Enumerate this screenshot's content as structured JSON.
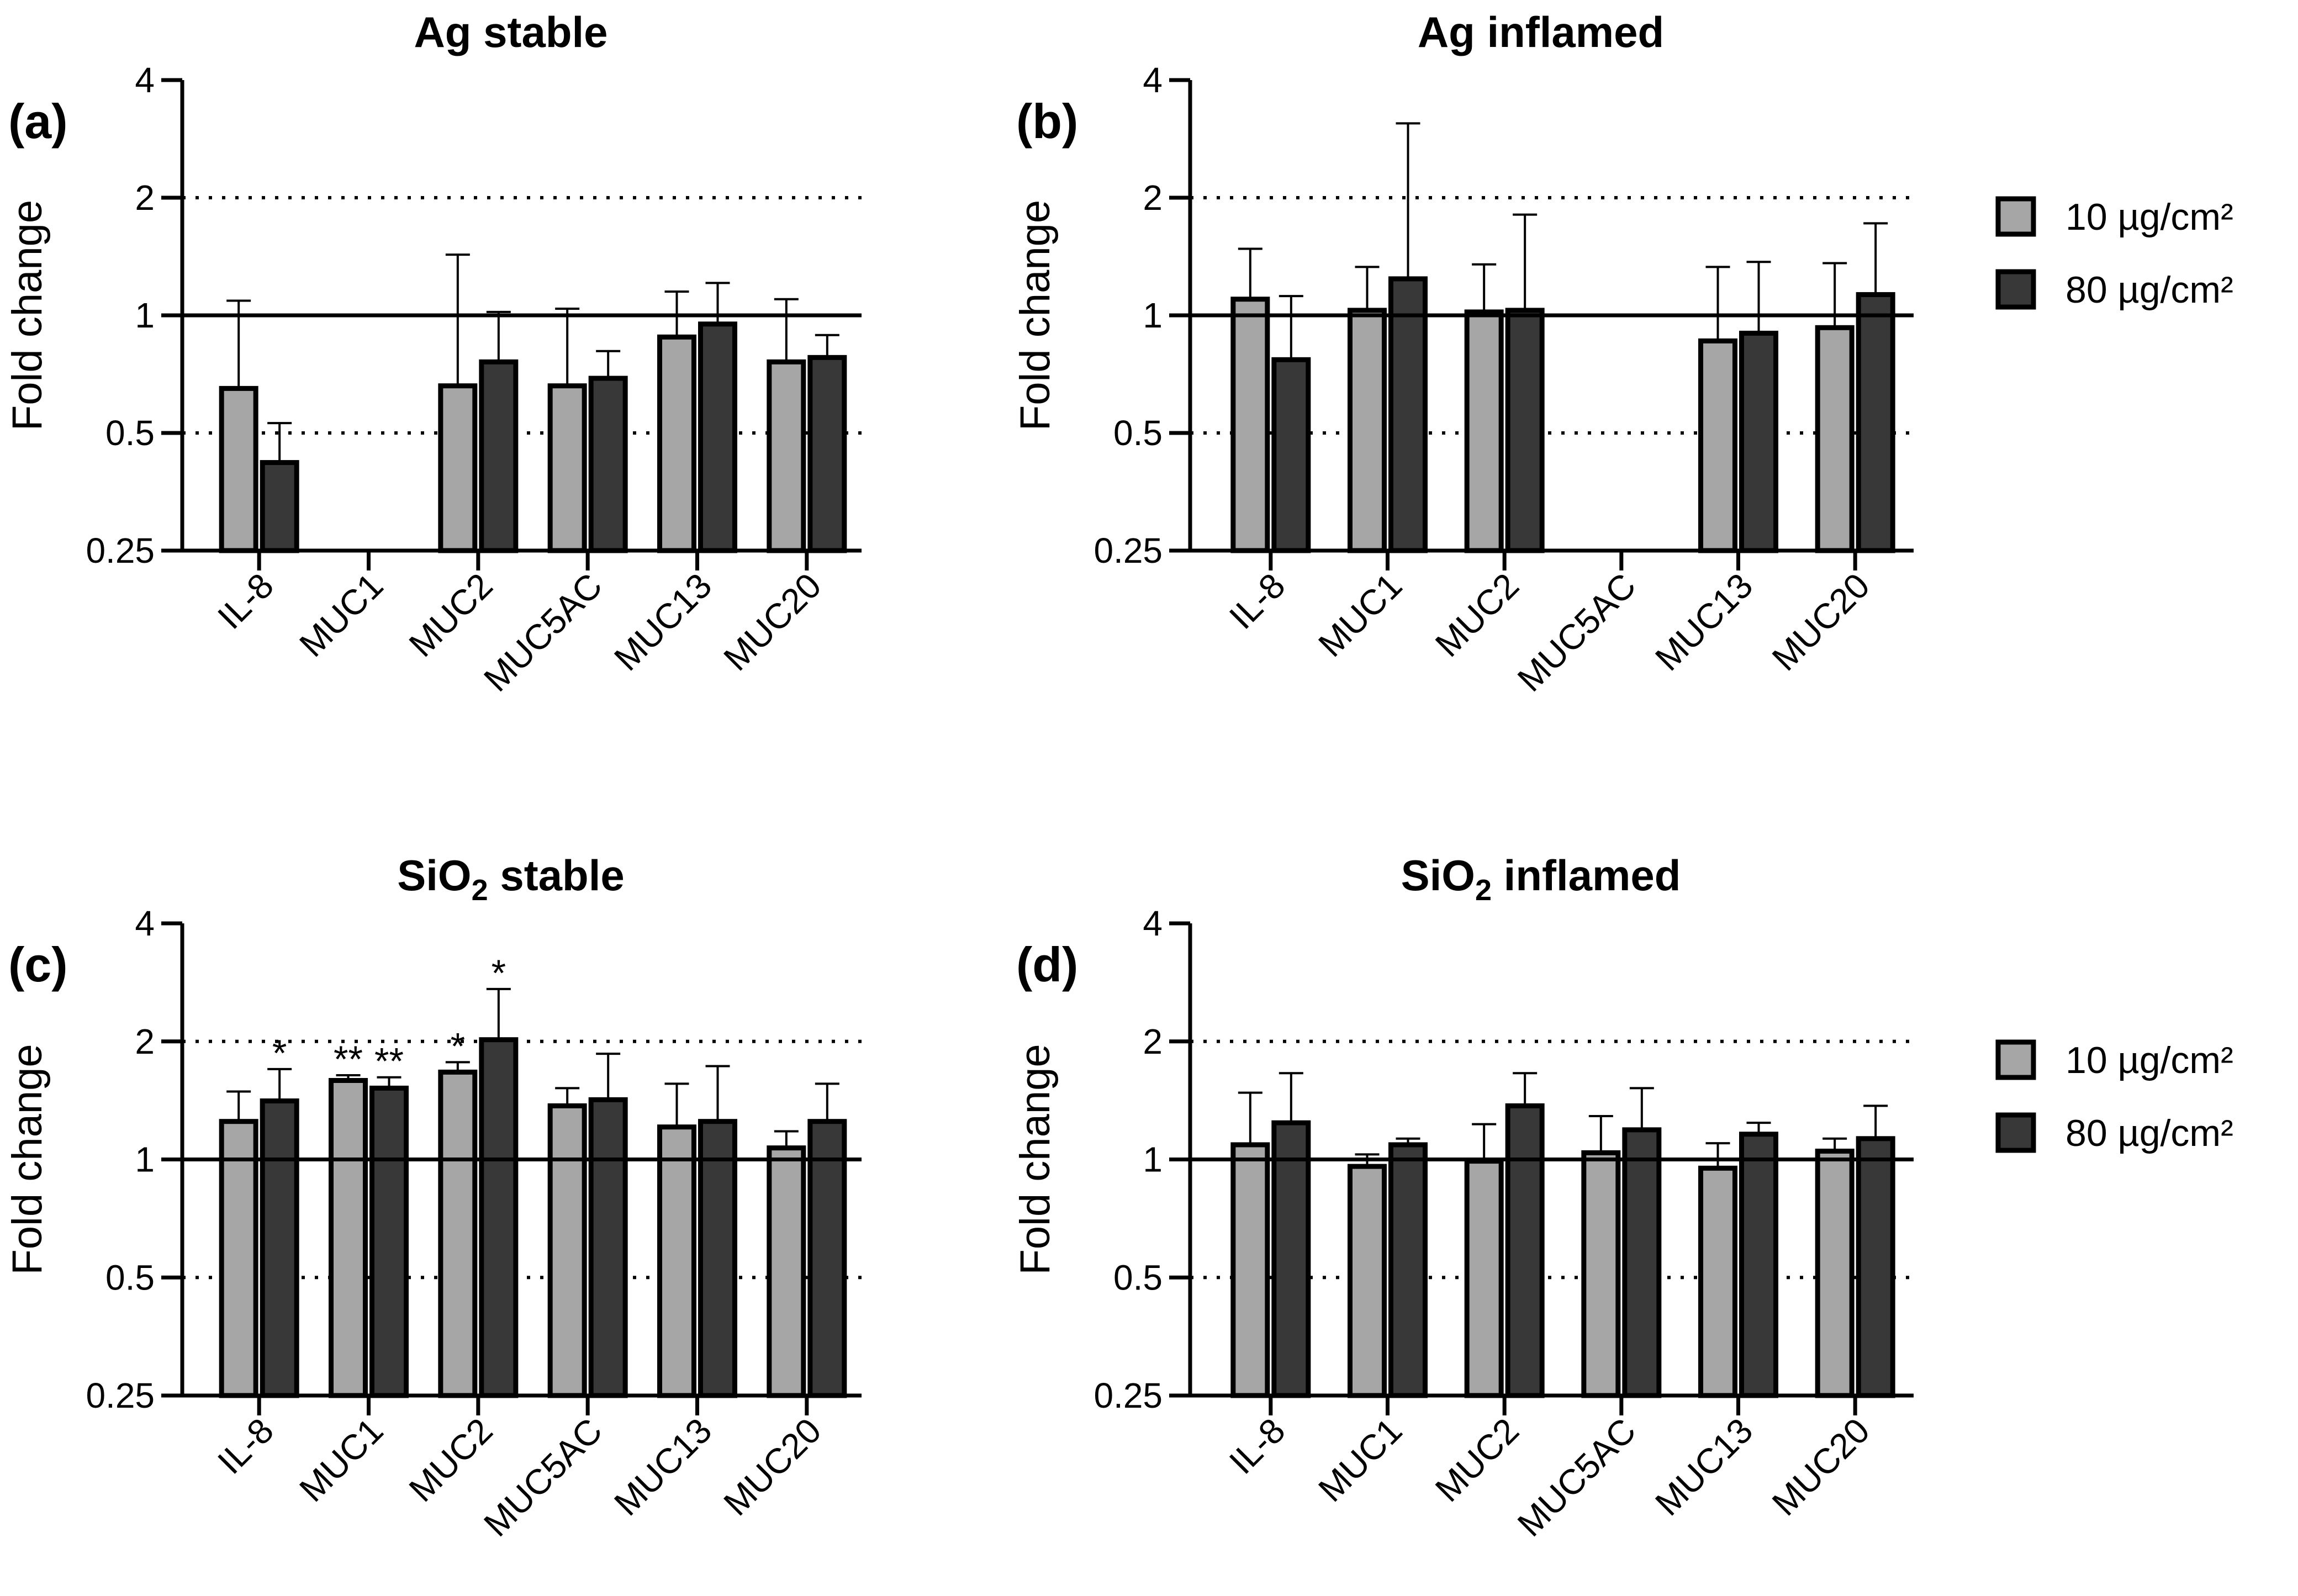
{
  "colors": {
    "series_10": "#a6a6a6",
    "series_80": "#383838",
    "outline": "#000000"
  },
  "legends": [
    {
      "entries": [
        "10 µg/cm²",
        "80 µg/cm²"
      ]
    },
    {
      "entries": [
        "10 µg/cm²",
        "80 µg/cm²"
      ]
    }
  ],
  "chart_data": [
    {
      "type": "bar",
      "panel_label": "(a)",
      "title": {
        "main": "Ag stable",
        "sub": "",
        "rest": ""
      },
      "ylabel": "Fold change",
      "yscale": "log2",
      "ylim": [
        0.25,
        4
      ],
      "yticks": [
        "0.25",
        "0.5",
        "1",
        "2",
        "4"
      ],
      "reference_lines": {
        "solid": 1,
        "dotted": [
          0.5,
          2
        ]
      },
      "categories": [
        "IL-8",
        "MUC1",
        "MUC2",
        "MUC5AC",
        "MUC13",
        "MUC20"
      ],
      "series": [
        {
          "name": "10 µg/cm²",
          "values": [
            0.65,
            null,
            0.66,
            0.66,
            0.88,
            0.76
          ],
          "err_top": [
            1.09,
            null,
            1.43,
            1.04,
            1.15,
            1.1
          ]
        },
        {
          "name": "80 µg/cm²",
          "values": [
            0.42,
            null,
            0.76,
            0.69,
            0.95,
            0.78
          ],
          "err_top": [
            0.53,
            null,
            1.02,
            0.81,
            1.21,
            0.89
          ]
        }
      ],
      "annotations": []
    },
    {
      "type": "bar",
      "panel_label": "(b)",
      "title": {
        "main": "Ag inflamed",
        "sub": "",
        "rest": ""
      },
      "ylabel": "Fold change",
      "yscale": "log2",
      "ylim": [
        0.25,
        4
      ],
      "yticks": [
        "0.25",
        "0.5",
        "1",
        "2",
        "4"
      ],
      "reference_lines": {
        "solid": 1,
        "dotted": [
          0.5,
          2
        ]
      },
      "categories": [
        "IL-8",
        "MUC1",
        "MUC2",
        "MUC5AC",
        "MUC13",
        "MUC20"
      ],
      "series": [
        {
          "name": "10 µg/cm²",
          "values": [
            1.1,
            1.03,
            1.02,
            null,
            0.86,
            0.93
          ],
          "err_top": [
            1.48,
            1.33,
            1.35,
            null,
            1.33,
            1.36
          ]
        },
        {
          "name": "80 µg/cm²",
          "values": [
            0.77,
            1.24,
            1.03,
            null,
            0.9,
            1.13
          ],
          "err_top": [
            1.12,
            3.1,
            1.81,
            null,
            1.37,
            1.72
          ]
        }
      ],
      "annotations": []
    },
    {
      "type": "bar",
      "panel_label": "(c)",
      "title": {
        "main": "SiO",
        "sub": "2",
        "rest": " stable"
      },
      "ylabel": "Fold change",
      "yscale": "log2",
      "ylim": [
        0.25,
        4
      ],
      "yticks": [
        "0.25",
        "0.5",
        "1",
        "2",
        "4"
      ],
      "reference_lines": {
        "solid": 1,
        "dotted": [
          0.5,
          2
        ]
      },
      "categories": [
        "IL-8",
        "MUC1",
        "MUC2",
        "MUC5AC",
        "MUC13",
        "MUC20"
      ],
      "series": [
        {
          "name": "10 µg/cm²",
          "values": [
            1.25,
            1.59,
            1.67,
            1.37,
            1.21,
            1.07
          ],
          "err_top": [
            1.49,
            1.64,
            1.77,
            1.52,
            1.56,
            1.18
          ]
        },
        {
          "name": "80 µg/cm²",
          "values": [
            1.41,
            1.52,
            2.02,
            1.42,
            1.25,
            1.25
          ],
          "err_top": [
            1.7,
            1.62,
            2.72,
            1.86,
            1.73,
            1.56
          ]
        }
      ],
      "annotations": [
        {
          "category": "IL-8",
          "series": 1,
          "text": "*"
        },
        {
          "category": "MUC1",
          "series": 0,
          "text": "**"
        },
        {
          "category": "MUC1",
          "series": 1,
          "text": "**"
        },
        {
          "category": "MUC2",
          "series": 0,
          "text": "*"
        },
        {
          "category": "MUC2",
          "series": 1,
          "text": "*"
        }
      ]
    },
    {
      "type": "bar",
      "panel_label": "(d)",
      "title": {
        "main": "SiO",
        "sub": "2",
        "rest": " inflamed"
      },
      "ylabel": "Fold change",
      "yscale": "log2",
      "ylim": [
        0.25,
        4
      ],
      "yticks": [
        "0.25",
        "0.5",
        "1",
        "2",
        "4"
      ],
      "reference_lines": {
        "solid": 1,
        "dotted": [
          0.5,
          2
        ]
      },
      "categories": [
        "IL-8",
        "MUC1",
        "MUC2",
        "MUC5AC",
        "MUC13",
        "MUC20"
      ],
      "series": [
        {
          "name": "10 µg/cm²",
          "values": [
            1.09,
            0.96,
            0.99,
            1.04,
            0.95,
            1.05
          ],
          "err_top": [
            1.48,
            1.03,
            1.23,
            1.29,
            1.1,
            1.13
          ]
        },
        {
          "name": "80 µg/cm²",
          "values": [
            1.24,
            1.09,
            1.37,
            1.19,
            1.16,
            1.13
          ],
          "err_top": [
            1.66,
            1.13,
            1.66,
            1.52,
            1.24,
            1.37
          ]
        }
      ],
      "annotations": []
    }
  ]
}
